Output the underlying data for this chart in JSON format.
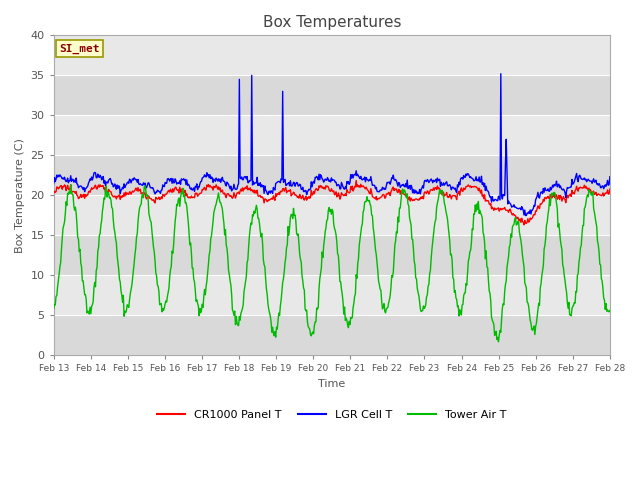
{
  "title": "Box Temperatures",
  "xlabel": "Time",
  "ylabel": "Box Temperature (C)",
  "ylim": [
    0,
    40
  ],
  "background_color": "#ffffff",
  "plot_bg_color": "#d9d9d9",
  "band_colors": [
    "#d9d9d9",
    "#e8e8e8"
  ],
  "grid_color": "#ffffff",
  "annotation_text": "SI_met",
  "annotation_bg": "#ffffcc",
  "annotation_border": "#999900",
  "annotation_text_color": "#8b0000",
  "legend_labels": [
    "CR1000 Panel T",
    "LGR Cell T",
    "Tower Air T"
  ],
  "legend_colors": [
    "#ff0000",
    "#0000ff",
    "#00bb00"
  ],
  "x_tick_labels": [
    "Feb 13",
    "Feb 14",
    "Feb 15",
    "Feb 16",
    "Feb 17",
    "Feb 18",
    "Feb 19",
    "Feb 20",
    "Feb 21",
    "Feb 22",
    "Feb 23",
    "Feb 24",
    "Feb 25",
    "Feb 26",
    "Feb 27",
    "Feb 28"
  ],
  "yticks": [
    0,
    5,
    10,
    15,
    20,
    25,
    30,
    35,
    40
  ],
  "num_points": 720,
  "line_width": 1.0,
  "title_color": "#444444",
  "label_color": "#555555",
  "tick_color": "#555555"
}
